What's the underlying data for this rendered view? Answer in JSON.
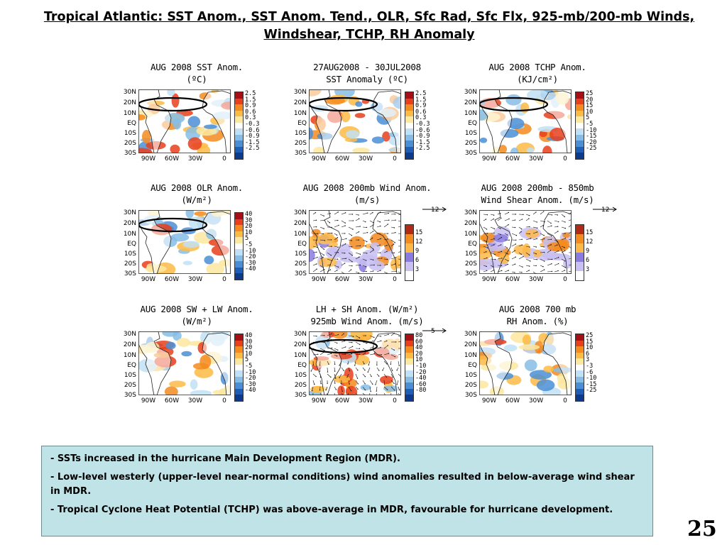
{
  "slide": {
    "title": "Tropical Atlantic: SST Anom., SST Anom. Tend., OLR, Sfc Rad, Sfc Flx, 925-mb/200-mb Winds, Windshear, TCHP, RH Anomaly",
    "page_number": "25"
  },
  "map_axes": {
    "lat_labels": [
      "30N",
      "20N",
      "10N",
      "EQ",
      "10S",
      "20S",
      "30S"
    ],
    "lon_labels": [
      "90W",
      "60W",
      "30W",
      "0"
    ]
  },
  "panels": [
    {
      "title1": "AUG 2008 SST Anom.",
      "title2": "(ºC)",
      "style": "anom",
      "cbar_labels": [
        "2.5",
        "1.5",
        "0.9",
        "0.6",
        "0.3",
        "-0.3",
        "-0.6",
        "-0.9",
        "-1.5",
        "-2.5"
      ],
      "circle": true
    },
    {
      "title1": "27AUG2008 - 30JUL2008",
      "title2": "SST Anomaly (ºC)",
      "style": "anom",
      "cbar_labels": [
        "2.5",
        "1.5",
        "0.9",
        "0.6",
        "0.3",
        "-0.3",
        "-0.6",
        "-0.9",
        "-1.5",
        "-2.5"
      ],
      "circle": true
    },
    {
      "title1": "AUG 2008 TCHP Anom.",
      "title2": "(KJ/cm²)",
      "style": "anom",
      "cbar_labels": [
        "25",
        "20",
        "15",
        "10",
        "5",
        "-5",
        "-10",
        "-15",
        "-20",
        "-25"
      ],
      "circle": true
    },
    {
      "title1": "AUG 2008 OLR Anom.",
      "title2": "(W/m²)",
      "style": "anom",
      "cbar_labels": [
        "40",
        "30",
        "20",
        "10",
        "5",
        "-5",
        "-10",
        "-20",
        "-30",
        "-40"
      ],
      "circle": true
    },
    {
      "title1": "AUG 2008 200mb Wind Anom.",
      "title2": "(m/s)",
      "style": "wind",
      "cbar_labels": [
        "15",
        "12",
        "9",
        "6",
        "3"
      ],
      "vector_ref": "12",
      "circle": false
    },
    {
      "title1": "AUG 2008 200mb - 850mb",
      "title2": "Wind Shear Anom. (m/s)",
      "style": "wind",
      "cbar_labels": [
        "15",
        "12",
        "9",
        "6",
        "3"
      ],
      "vector_ref": "12",
      "circle": false
    },
    {
      "title1": "AUG 2008 SW + LW Anom.",
      "title2": "(W/m²)",
      "style": "anom",
      "cbar_labels": [
        "40",
        "30",
        "20",
        "10",
        "5",
        "-5",
        "-10",
        "-20",
        "-30",
        "-40"
      ],
      "circle": false
    },
    {
      "title1": "LH + SH Anom. (W/m²)",
      "title2": "925mb Wind Anom. (m/s)",
      "style": "flux",
      "cbar_labels": [
        "80",
        "60",
        "40",
        "20",
        "10",
        "-10",
        "-20",
        "-40",
        "-60",
        "-80"
      ],
      "vector_ref": "5",
      "circle": true
    },
    {
      "title1": "AUG 2008 700 mb",
      "title2": "RH Anom. (%)",
      "style": "anom",
      "cbar_labels": [
        "25",
        "15",
        "10",
        "6",
        "3",
        "-3",
        "-6",
        "-10",
        "-15",
        "-25"
      ],
      "circle": false
    }
  ],
  "bullets": [
    "SSTs increased in the hurricane Main Development Region (MDR).",
    "Low-level westerly (upper-level near-normal conditions) wind anomalies resulted in below-average wind shear in MDR.",
    "Tropical Cyclone Heat Potential (TCHP) was above-average in MDR, favourable for hurricane development."
  ],
  "colors": {
    "anom_scale": [
      "#a50f15",
      "#e8401c",
      "#f58b1f",
      "#fdbb45",
      "#fde8a0",
      "#ffffff",
      "#bfe0f5",
      "#86bde6",
      "#4a8fd6",
      "#1f5fb8",
      "#0d3a8a"
    ],
    "wind_scale": [
      "#b22a15",
      "#f28a1f",
      "#fdb84a",
      "#8a7be0",
      "#c8c0f2",
      "#ffffff"
    ],
    "circle": "#000000"
  }
}
